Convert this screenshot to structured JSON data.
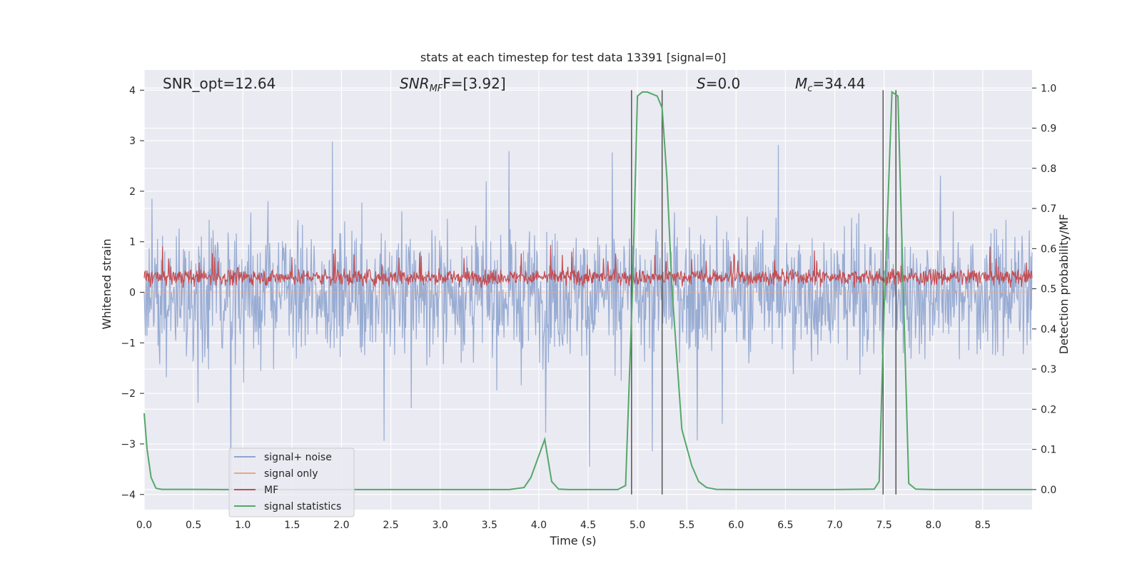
{
  "chart_data": {
    "type": "line",
    "title": "stats at each timestep for test data 13391 [signal=0]",
    "xlabel": "Time (s)",
    "ylabel": "Whitened strain",
    "ylabel_right": "Detection probability/MF",
    "xlim": [
      0,
      9.0
    ],
    "ylim": [
      -4.3,
      4.4
    ],
    "ylim_right": [
      -0.05,
      1.045
    ],
    "x_ticks": [
      0.0,
      0.5,
      1.0,
      1.5,
      2.0,
      2.5,
      3.0,
      3.5,
      4.0,
      4.5,
      5.0,
      5.5,
      6.0,
      6.5,
      7.0,
      7.5,
      8.0,
      8.5
    ],
    "x_tick_labels": [
      "0.0",
      "0.5",
      "1.0",
      "1.5",
      "2.0",
      "2.5",
      "3.0",
      "3.5",
      "4.0",
      "4.5",
      "5.0",
      "5.5",
      "6.0",
      "6.5",
      "7.0",
      "7.5",
      "8.0",
      "8.5"
    ],
    "y_ticks": [
      -4,
      -3,
      -2,
      -1,
      0,
      1,
      2,
      3,
      4
    ],
    "y_tick_labels": [
      "−4",
      "−3",
      "−2",
      "−1",
      "0",
      "1",
      "2",
      "3",
      "4"
    ],
    "y_ticks_right": [
      0.0,
      0.1,
      0.2,
      0.3,
      0.4,
      0.5,
      0.6,
      0.7,
      0.8,
      0.9,
      1.0
    ],
    "y_tick_labels_right": [
      "0.0",
      "0.1",
      "0.2",
      "0.3",
      "0.4",
      "0.5",
      "0.6",
      "0.7",
      "0.8",
      "0.9",
      "1.0"
    ],
    "annotations": {
      "snr_opt": "SNR_opt=12.64",
      "snr_mf_main": "SNR",
      "snr_mf_sub": "MF",
      "snr_mf_value": "F=[3.92]",
      "s_main": "S",
      "s_value": "=0.0",
      "mc_main": "M",
      "mc_sub": "c",
      "mc_value": "=34.44"
    },
    "legend": {
      "position": "lower-left",
      "entries": [
        "signal+ noise",
        "signal only",
        "MF",
        "signal statistics"
      ]
    },
    "series": [
      {
        "name": "signal+ noise",
        "axis": "left",
        "color": "#8fa5cf",
        "kind": "noise band",
        "mean": 0.0,
        "typical_abs_max": 1.6,
        "peak_max": 3.37,
        "peak_min": -3.9
      },
      {
        "name": "signal only",
        "axis": "left",
        "color": "#e8a789",
        "kind": "flat",
        "value": 0.0
      },
      {
        "name": "MF",
        "axis": "left",
        "color": "#c44e52",
        "kind": "noise band",
        "mean": 0.3,
        "band_low": 0.05,
        "band_high": 0.75,
        "peak_max": 1.0
      },
      {
        "name": "signal statistics",
        "axis": "right",
        "color": "#55a868",
        "x": [
          0.0,
          0.03,
          0.07,
          0.12,
          0.18,
          0.3,
          0.5,
          0.8,
          1.0,
          2.0,
          3.0,
          3.7,
          3.85,
          3.92,
          4.06,
          4.13,
          4.2,
          4.3,
          4.8,
          4.88,
          4.95,
          5.0,
          5.05,
          5.1,
          5.15,
          5.2,
          5.25,
          5.3,
          5.35,
          5.45,
          5.55,
          5.62,
          5.7,
          5.8,
          6.0,
          7.0,
          7.4,
          7.45,
          7.5,
          7.58,
          7.64,
          7.7,
          7.75,
          7.82,
          8.0,
          9.0
        ],
        "values": [
          0.19,
          0.1,
          0.03,
          0.003,
          0.0005,
          0.0005,
          0.0005,
          0.0,
          0.0,
          0.0,
          0.0,
          0.0,
          0.005,
          0.03,
          0.125,
          0.02,
          0.001,
          0.0,
          0.0,
          0.01,
          0.5,
          0.98,
          0.99,
          0.99,
          0.985,
          0.98,
          0.95,
          0.77,
          0.5,
          0.15,
          0.06,
          0.02,
          0.005,
          0.0005,
          0.0,
          0.0,
          0.001,
          0.02,
          0.45,
          0.99,
          0.98,
          0.45,
          0.015,
          0.001,
          0.0,
          0.0
        ]
      }
    ],
    "vertical_lines": [
      4.94,
      5.25,
      7.49,
      7.62
    ],
    "vertical_lines_range": [
      -4.0,
      4.0
    ]
  }
}
